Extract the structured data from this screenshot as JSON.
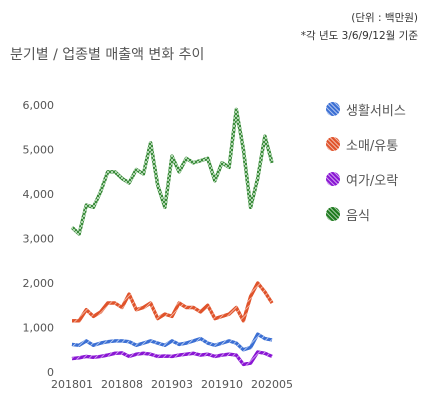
{
  "header": {
    "unit": "(단위 : 백만원)",
    "note": "*각 년도 3/6/9/12월 기준",
    "title": "분기별 / 업종별 매출액 변화 추이"
  },
  "chart_data": {
    "type": "line",
    "x": [
      "201801",
      "201802",
      "201803",
      "201804",
      "201805",
      "201806",
      "201807",
      "201808",
      "201809",
      "201810",
      "201811",
      "201812",
      "201901",
      "201902",
      "201903",
      "201904",
      "201905",
      "201906",
      "201907",
      "201908",
      "201909",
      "201910",
      "201911",
      "201912",
      "202001",
      "202002",
      "202003",
      "202004",
      "202005"
    ],
    "x_tick_labels": [
      "201801",
      "201808",
      "201903",
      "201910",
      "202005"
    ],
    "ylim": [
      0,
      6000
    ],
    "y_ticks": [
      "0",
      "1,000",
      "2,000",
      "3,000",
      "4,000",
      "5,000",
      "6,000"
    ],
    "grid": false,
    "legend_position": "right",
    "series": [
      {
        "name": "생활서비스",
        "color": "#3b6fd4",
        "values": [
          620,
          600,
          700,
          600,
          650,
          680,
          700,
          700,
          680,
          600,
          650,
          700,
          650,
          600,
          700,
          620,
          650,
          700,
          750,
          650,
          600,
          650,
          700,
          650,
          500,
          550,
          850,
          750,
          720
        ]
      },
      {
        "name": "소매/유통",
        "color": "#e0532b",
        "values": [
          1150,
          1150,
          1400,
          1250,
          1350,
          1550,
          1550,
          1450,
          1750,
          1400,
          1450,
          1550,
          1200,
          1300,
          1250,
          1550,
          1450,
          1450,
          1350,
          1500,
          1200,
          1250,
          1300,
          1450,
          1150,
          1700,
          2000,
          1800,
          1550
        ]
      },
      {
        "name": "여가/오락",
        "color": "#8a16d4",
        "values": [
          300,
          320,
          350,
          330,
          350,
          380,
          420,
          430,
          350,
          400,
          420,
          400,
          350,
          360,
          350,
          380,
          400,
          420,
          380,
          400,
          350,
          380,
          400,
          380,
          170,
          200,
          450,
          420,
          350
        ]
      },
      {
        "name": "음식",
        "color": "#1e7a1e",
        "values": [
          3250,
          3100,
          3750,
          3700,
          4050,
          4500,
          4500,
          4350,
          4250,
          4550,
          4450,
          5150,
          4200,
          3700,
          4850,
          4500,
          4800,
          4700,
          4750,
          4800,
          4300,
          4700,
          4600,
          5900,
          5000,
          3700,
          4350,
          5300,
          4700
        ]
      }
    ]
  }
}
